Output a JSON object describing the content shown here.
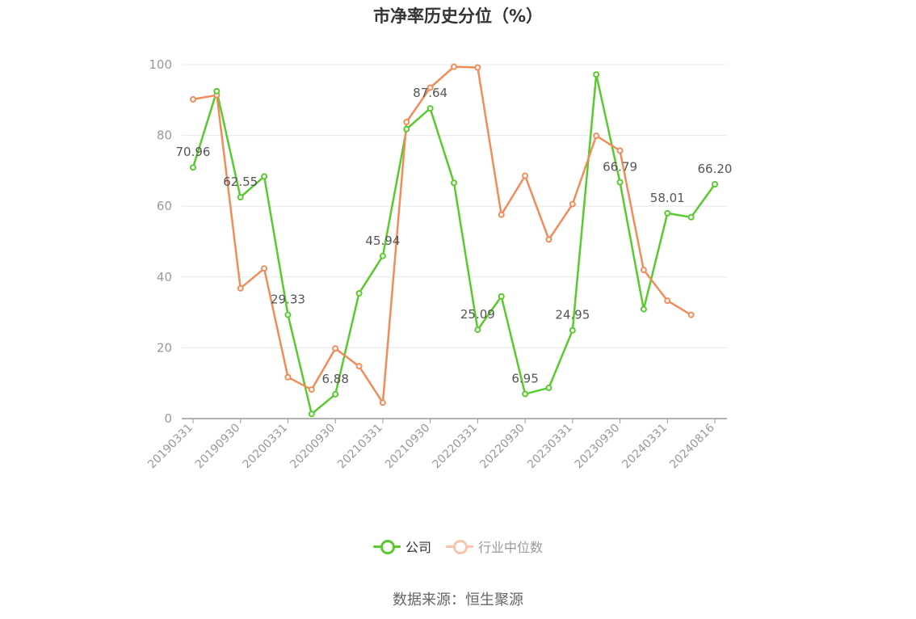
{
  "chart_data": {
    "type": "line",
    "title": "市净率历史分位（%）",
    "ylim": [
      0,
      100
    ],
    "yticks": [
      0,
      20,
      40,
      60,
      80,
      100
    ],
    "xticklabels": [
      "20190331",
      "20190930",
      "20200331",
      "20200930",
      "20210331",
      "20210930",
      "20220331",
      "20220930",
      "20230331",
      "20230930",
      "20240331",
      "20240816"
    ],
    "x": [
      "20190331",
      "20190630",
      "20190930",
      "20191231",
      "20200331",
      "20200630",
      "20200930",
      "20201231",
      "20210331",
      "20210630",
      "20210930",
      "20211231",
      "20220331",
      "20220630",
      "20220930",
      "20221231",
      "20230331",
      "20230630",
      "20230930",
      "20231231",
      "20240331",
      "20240630",
      "20240816"
    ],
    "series": [
      {
        "name": "公司",
        "color": "#5ac92e",
        "values": [
          70.96,
          92.5,
          62.55,
          68.4,
          29.33,
          1.3,
          6.88,
          35.4,
          45.94,
          81.8,
          87.64,
          66.6,
          25.09,
          34.5,
          6.95,
          8.7,
          24.95,
          97.2,
          66.79,
          30.9,
          58.01,
          56.9,
          66.2
        ],
        "labels": [
          "70.96",
          "",
          "62.55",
          "",
          "29.33",
          "",
          "6.88",
          "",
          "45.94",
          "",
          "87.64",
          "",
          "25.09",
          "",
          "6.95",
          "",
          "24.95",
          "",
          "66.79",
          "",
          "58.01",
          "",
          "66.20"
        ]
      },
      {
        "name": "行业中位数",
        "color": "#f08c5a",
        "values": [
          90.2,
          91.4,
          36.8,
          42.4,
          11.7,
          8.2,
          19.8,
          14.8,
          4.5,
          83.8,
          93.5,
          99.4,
          99.2,
          57.6,
          68.6,
          50.6,
          60.6,
          79.9,
          75.7,
          42.0,
          33.3,
          29.3,
          null
        ]
      }
    ],
    "legend_position": "bottom-center",
    "grid": true
  },
  "legend": {
    "company_label": "公司",
    "industry_label": "行业中位数"
  },
  "source_text": "数据来源：恒生聚源"
}
